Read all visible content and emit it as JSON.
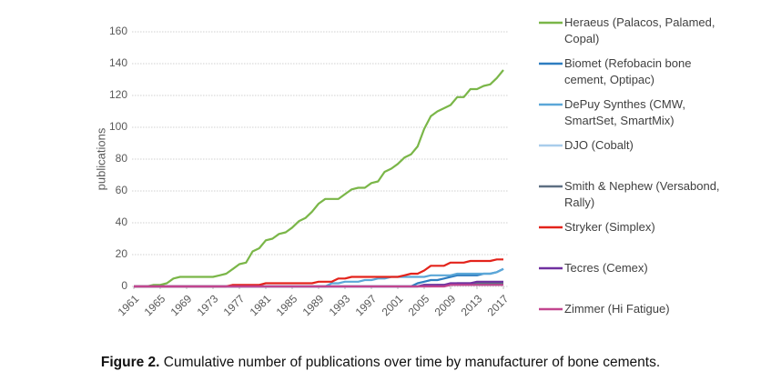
{
  "chart_data": {
    "type": "line",
    "y_label": "publications",
    "caption": {
      "label": "Figure 2.",
      "text": "Cumulative number of publications over time by manufacturer of bone cements."
    },
    "x": [
      1961,
      1962,
      1963,
      1964,
      1965,
      1966,
      1967,
      1968,
      1969,
      1970,
      1971,
      1972,
      1973,
      1974,
      1975,
      1976,
      1977,
      1978,
      1979,
      1980,
      1981,
      1982,
      1983,
      1984,
      1985,
      1986,
      1987,
      1988,
      1989,
      1990,
      1991,
      1992,
      1993,
      1994,
      1995,
      1996,
      1997,
      1998,
      1999,
      2000,
      2001,
      2002,
      2003,
      2004,
      2005,
      2006,
      2007,
      2008,
      2009,
      2010,
      2011,
      2012,
      2013,
      2014,
      2015,
      2016,
      2017
    ],
    "xlim": [
      1961,
      2017
    ],
    "xticks": [
      1961,
      1965,
      1969,
      1973,
      1977,
      1981,
      1985,
      1989,
      1993,
      1997,
      2001,
      2005,
      2009,
      2013,
      2017
    ],
    "ylim": [
      0,
      160
    ],
    "yticks": [
      0,
      20,
      40,
      60,
      80,
      100,
      120,
      140,
      160
    ],
    "grid": true,
    "series": [
      {
        "name": "Heraeus (Palacos, Palamed, Copal)",
        "color": "#7ab648",
        "values": [
          0,
          0,
          0,
          1,
          1,
          2,
          5,
          6,
          6,
          6,
          6,
          6,
          6,
          7,
          8,
          11,
          14,
          15,
          22,
          24,
          29,
          30,
          33,
          34,
          37,
          41,
          43,
          47,
          52,
          55,
          55,
          55,
          58,
          61,
          62,
          62,
          65,
          66,
          72,
          74,
          77,
          81,
          83,
          88,
          99,
          107,
          110,
          112,
          114,
          119,
          119,
          124,
          124,
          126,
          127,
          131,
          136
        ]
      },
      {
        "name": "Biomet (Refobacin bone cement, Optipac)",
        "color": "#2e7dc0",
        "values": [
          0,
          0,
          0,
          0,
          0,
          0,
          0,
          0,
          0,
          0,
          0,
          0,
          0,
          0,
          0,
          0,
          0,
          0,
          0,
          0,
          0,
          0,
          0,
          0,
          0,
          0,
          0,
          0,
          0,
          0,
          0,
          0,
          0,
          0,
          0,
          0,
          0,
          0,
          0,
          0,
          0,
          0,
          0,
          2,
          3,
          4,
          4,
          5,
          6,
          7,
          7,
          7,
          7,
          8,
          8,
          9,
          11
        ]
      },
      {
        "name": "DePuy Synthes (CMW, SmartSet, SmartMix)",
        "color": "#5ba7d8",
        "values": [
          0,
          0,
          0,
          0,
          0,
          0,
          0,
          0,
          0,
          0,
          0,
          0,
          0,
          0,
          0,
          0,
          0,
          0,
          0,
          0,
          0,
          0,
          0,
          0,
          0,
          0,
          0,
          0,
          0,
          0,
          2,
          2,
          3,
          3,
          3,
          4,
          4,
          5,
          5,
          6,
          6,
          6,
          6,
          6,
          6,
          7,
          7,
          7,
          7,
          8,
          8,
          8,
          8,
          8,
          8,
          9,
          11
        ]
      },
      {
        "name": "DJO (Cobalt)",
        "color": "#a9cdeb",
        "values": [
          0,
          0,
          0,
          0,
          0,
          0,
          0,
          0,
          0,
          0,
          0,
          0,
          0,
          0,
          0,
          0,
          0,
          0,
          0,
          0,
          0,
          0,
          0,
          0,
          0,
          0,
          0,
          0,
          0,
          0,
          0,
          0,
          0,
          0,
          0,
          0,
          0,
          0,
          0,
          0,
          0,
          0,
          0,
          0,
          0,
          0,
          1,
          1,
          1,
          1,
          1,
          1,
          1,
          1,
          1,
          1,
          1
        ]
      },
      {
        "name": "Smith & Nephew (Versabond, Rally)",
        "color": "#5d6f82",
        "values": [
          0,
          0,
          0,
          0,
          0,
          0,
          0,
          0,
          0,
          0,
          0,
          0,
          0,
          0,
          0,
          0,
          0,
          0,
          0,
          0,
          0,
          0,
          0,
          0,
          0,
          0,
          0,
          0,
          0,
          0,
          0,
          0,
          0,
          0,
          0,
          0,
          0,
          0,
          0,
          0,
          0,
          0,
          0,
          0,
          1,
          1,
          1,
          1,
          1,
          2,
          2,
          2,
          2,
          2,
          2,
          2,
          2
        ]
      },
      {
        "name": "Stryker (Simplex)",
        "color": "#e3231b",
        "values": [
          0,
          0,
          0,
          0,
          0,
          0,
          0,
          0,
          0,
          0,
          0,
          0,
          0,
          0,
          0,
          1,
          1,
          1,
          1,
          1,
          2,
          2,
          2,
          2,
          2,
          2,
          2,
          2,
          3,
          3,
          3,
          5,
          5,
          6,
          6,
          6,
          6,
          6,
          6,
          6,
          6,
          7,
          8,
          8,
          10,
          13,
          13,
          13,
          15,
          15,
          15,
          16,
          16,
          16,
          16,
          17,
          17
        ]
      },
      {
        "name": "Tecres (Cemex)",
        "color": "#7030a0",
        "values": [
          0,
          0,
          0,
          0,
          0,
          0,
          0,
          0,
          0,
          0,
          0,
          0,
          0,
          0,
          0,
          0,
          0,
          0,
          0,
          0,
          0,
          0,
          0,
          0,
          0,
          0,
          0,
          0,
          0,
          0,
          0,
          0,
          0,
          0,
          0,
          0,
          0,
          0,
          0,
          0,
          0,
          0,
          0,
          0,
          1,
          1,
          1,
          1,
          2,
          2,
          2,
          2,
          3,
          3,
          3,
          3,
          3
        ]
      },
      {
        "name": "Zimmer (Hi Fatigue)",
        "color": "#c2458f",
        "values": [
          0,
          0,
          0,
          0,
          0,
          0,
          0,
          0,
          0,
          0,
          0,
          0,
          0,
          0,
          0,
          0,
          0,
          0,
          0,
          0,
          0,
          0,
          0,
          0,
          0,
          0,
          0,
          0,
          0,
          0,
          0,
          0,
          0,
          0,
          0,
          0,
          0,
          0,
          0,
          0,
          0,
          0,
          0,
          0,
          0,
          0,
          0,
          0,
          1,
          1,
          1,
          1,
          1,
          1,
          1,
          1,
          1
        ]
      }
    ]
  }
}
